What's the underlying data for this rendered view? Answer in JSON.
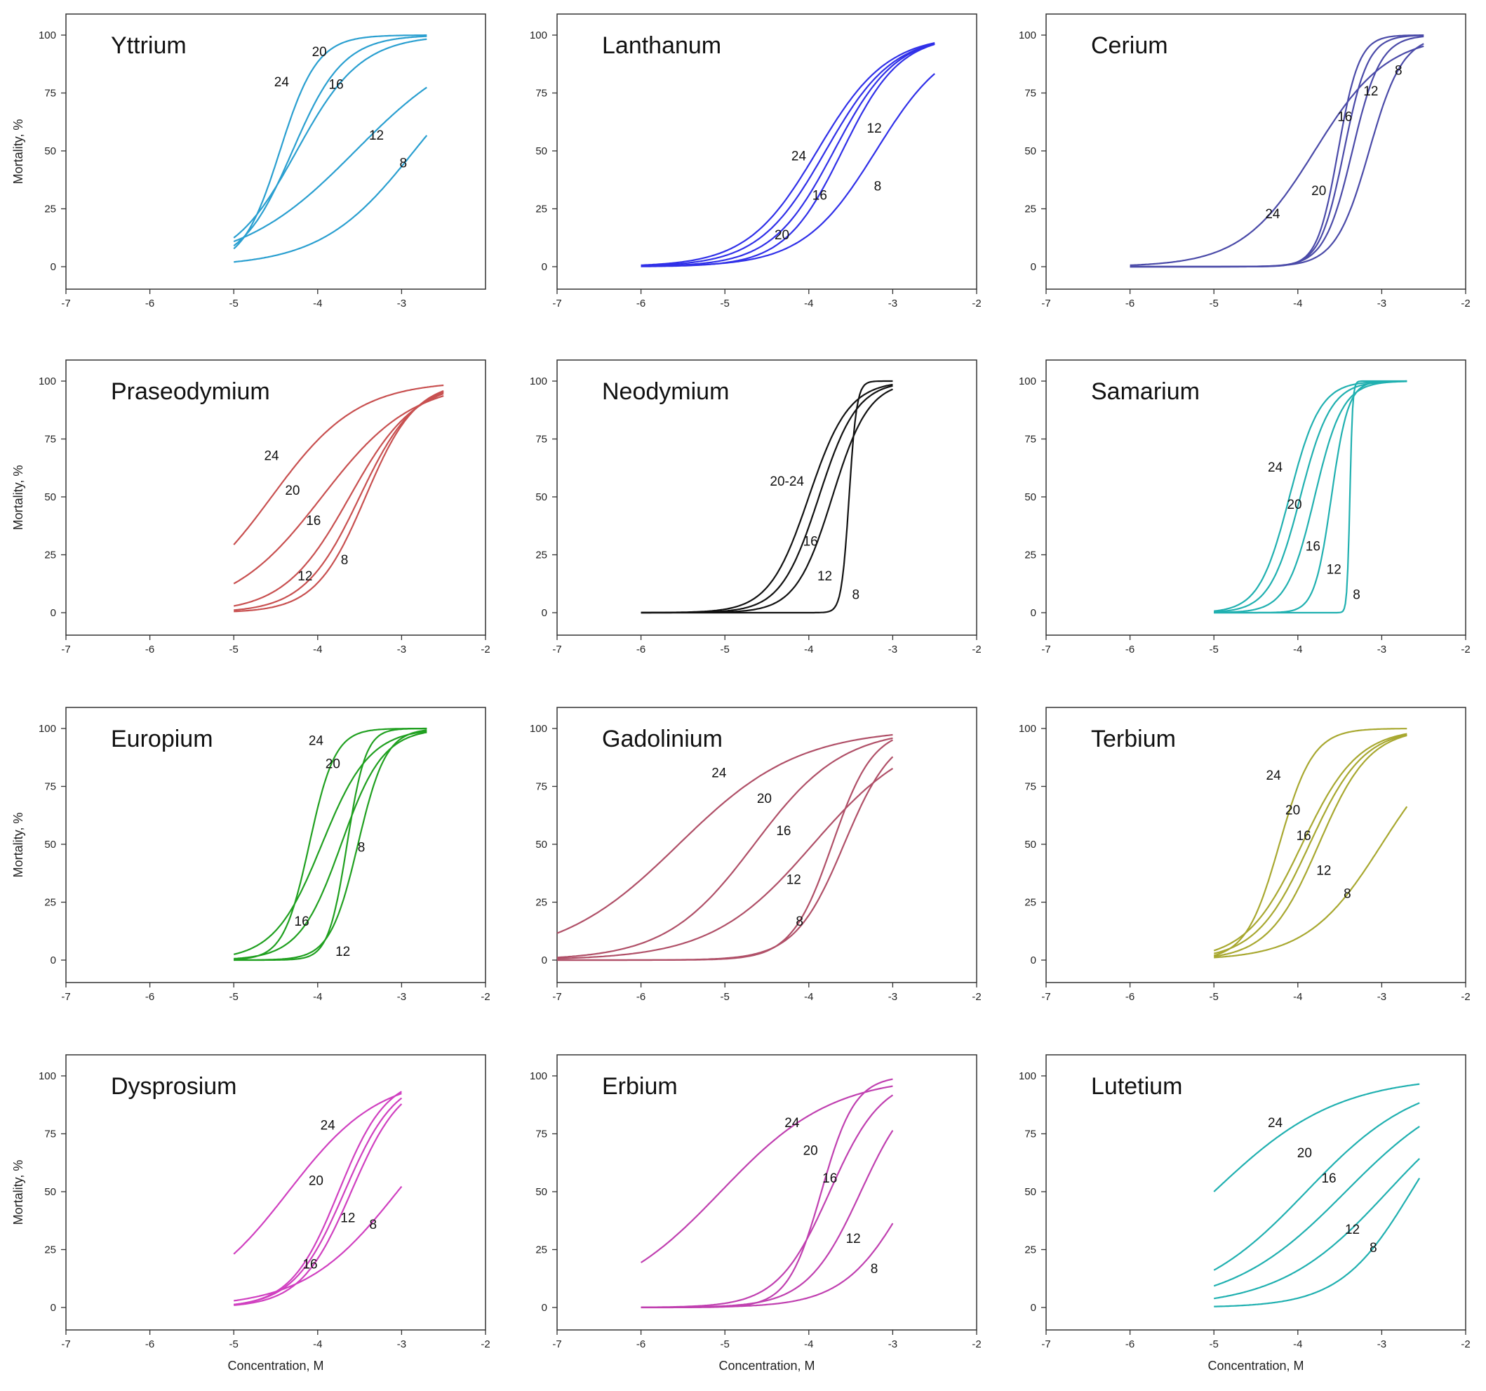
{
  "chart_data": [
    {
      "type": "line",
      "title": "Yttrium",
      "color": "#2a9fd0",
      "xlim": [
        -7,
        -2
      ],
      "ylim": [
        0,
        100
      ],
      "xticks": [
        "-7",
        "-6",
        "-5",
        "-4",
        "-3"
      ],
      "yticks": [
        "0",
        "25",
        "50",
        "75",
        "100"
      ],
      "ylabel": "Mortality, %",
      "xlabel": "",
      "series": [
        {
          "name": "24",
          "x0": -4.45,
          "slope": 4.5,
          "xmin": -5,
          "xmax": -2.7
        },
        {
          "name": "20",
          "x0": -4.3,
          "slope": 3.3,
          "xmin": -5,
          "xmax": -2.7
        },
        {
          "name": "16",
          "x0": -4.25,
          "slope": 2.6,
          "xmin": -5,
          "xmax": -2.7
        },
        {
          "name": "12",
          "x0": -3.55,
          "slope": 1.45,
          "xmin": -5,
          "xmax": -2.7
        },
        {
          "name": "8",
          "x0": -2.85,
          "slope": 1.8,
          "xmin": -5,
          "xmax": -2.7
        }
      ],
      "labels": [
        {
          "text": "24",
          "x": -4.43,
          "y": 80
        },
        {
          "text": "20",
          "x": -3.98,
          "y": 93
        },
        {
          "text": "16",
          "x": -3.78,
          "y": 79
        },
        {
          "text": "12",
          "x": -3.3,
          "y": 57
        },
        {
          "text": "8",
          "x": -2.98,
          "y": 45
        }
      ]
    },
    {
      "type": "line",
      "title": "Lanthanum",
      "color": "#3030e8",
      "xlim": [
        -7,
        -2
      ],
      "ylim": [
        0,
        100
      ],
      "xticks": [
        "-7",
        "-6",
        "-5",
        "-4",
        "-3",
        "-2"
      ],
      "yticks": [
        "0",
        "25",
        "50",
        "75",
        "100"
      ],
      "ylabel": "",
      "xlabel": "",
      "series": [
        {
          "name": "24",
          "x0": -3.9,
          "slope": 2.4,
          "xmin": -6,
          "xmax": -2.5
        },
        {
          "name": "20",
          "x0": -3.8,
          "slope": 2.5,
          "xmin": -6,
          "xmax": -2.5
        },
        {
          "name": "16",
          "x0": -3.7,
          "slope": 2.7,
          "xmin": -6,
          "xmax": -2.5
        },
        {
          "name": "12",
          "x0": -3.6,
          "slope": 2.9,
          "xmin": -6,
          "xmax": -2.5
        },
        {
          "name": "8",
          "x0": -3.2,
          "slope": 2.3,
          "xmin": -6,
          "xmax": -2.5
        }
      ],
      "labels": [
        {
          "text": "24",
          "x": -4.12,
          "y": 48
        },
        {
          "text": "16",
          "x": -3.87,
          "y": 31
        },
        {
          "text": "20",
          "x": -4.32,
          "y": 14
        },
        {
          "text": "12",
          "x": -3.22,
          "y": 60
        },
        {
          "text": "8",
          "x": -3.18,
          "y": 35
        }
      ]
    },
    {
      "type": "line",
      "title": "Cerium",
      "color": "#4a4aa8",
      "xlim": [
        -7,
        -2
      ],
      "ylim": [
        0,
        100
      ],
      "xticks": [
        "-7",
        "-6",
        "-5",
        "-4",
        "-3",
        "-2"
      ],
      "yticks": [
        "0",
        "25",
        "50",
        "75",
        "100"
      ],
      "ylabel": "",
      "xlabel": "",
      "series": [
        {
          "name": "24",
          "x0": -3.8,
          "slope": 2.3,
          "xmin": -6,
          "xmax": -2.5
        },
        {
          "name": "20",
          "x0": -3.52,
          "slope": 8,
          "xmin": -6,
          "xmax": -2.5
        },
        {
          "name": "16",
          "x0": -3.45,
          "slope": 7,
          "xmin": -6,
          "xmax": -2.5
        },
        {
          "name": "12",
          "x0": -3.35,
          "slope": 6,
          "xmin": -6,
          "xmax": -2.5
        },
        {
          "name": "8",
          "x0": -3.15,
          "slope": 5,
          "xmin": -6,
          "xmax": -2.5
        }
      ],
      "labels": [
        {
          "text": "24",
          "x": -4.3,
          "y": 23
        },
        {
          "text": "20",
          "x": -3.75,
          "y": 33
        },
        {
          "text": "16",
          "x": -3.44,
          "y": 65
        },
        {
          "text": "12",
          "x": -3.13,
          "y": 76
        },
        {
          "text": "8",
          "x": -2.8,
          "y": 85
        }
      ]
    },
    {
      "type": "line",
      "title": "Praseodymium",
      "color": "#c85050",
      "xlim": [
        -7,
        -2
      ],
      "ylim": [
        0,
        100
      ],
      "xticks": [
        "-7",
        "-6",
        "-5",
        "-4",
        "-3",
        "-2"
      ],
      "yticks": [
        "0",
        "25",
        "50",
        "75",
        "100"
      ],
      "ylabel": "Mortality, %",
      "xlabel": "",
      "series": [
        {
          "name": "24",
          "x0": -4.55,
          "slope": 1.95,
          "xmin": -5,
          "xmax": -2.5
        },
        {
          "name": "20",
          "x0": -3.95,
          "slope": 1.85,
          "xmin": -5,
          "xmax": -2.5
        },
        {
          "name": "16",
          "x0": -3.62,
          "slope": 2.55,
          "xmin": -5,
          "xmax": -2.5
        },
        {
          "name": "12",
          "x0": -3.5,
          "slope": 3.0,
          "xmin": -5,
          "xmax": -2.5
        },
        {
          "name": "8",
          "x0": -3.43,
          "slope": 3.35,
          "xmin": -5,
          "xmax": -2.5
        }
      ],
      "labels": [
        {
          "text": "24",
          "x": -4.55,
          "y": 68
        },
        {
          "text": "20",
          "x": -4.3,
          "y": 53
        },
        {
          "text": "16",
          "x": -4.05,
          "y": 40
        },
        {
          "text": "12",
          "x": -4.15,
          "y": 16
        },
        {
          "text": "8",
          "x": -3.68,
          "y": 23
        }
      ]
    },
    {
      "type": "line",
      "title": "Neodymium",
      "color": "#111111",
      "xlim": [
        -7,
        -2
      ],
      "ylim": [
        0,
        100
      ],
      "xticks": [
        "-7",
        "-6",
        "-5",
        "-4",
        "-3",
        "-2"
      ],
      "yticks": [
        "0",
        "25",
        "50",
        "75",
        "100"
      ],
      "ylabel": "",
      "xlabel": "",
      "series": [
        {
          "name": "20-24",
          "x0": -4.0,
          "slope": 4.2,
          "xmin": -6,
          "xmax": -3
        },
        {
          "name": "16",
          "x0": -3.88,
          "slope": 4.4,
          "xmin": -6,
          "xmax": -3
        },
        {
          "name": "12",
          "x0": -3.72,
          "slope": 4.6,
          "xmin": -6,
          "xmax": -3
        },
        {
          "name": "8",
          "x0": -3.52,
          "slope": 22,
          "xmin": -6,
          "xmax": -3
        }
      ],
      "labels": [
        {
          "text": "20-24",
          "x": -4.26,
          "y": 57
        },
        {
          "text": "16",
          "x": -3.98,
          "y": 31
        },
        {
          "text": "12",
          "x": -3.81,
          "y": 16
        },
        {
          "text": "8",
          "x": -3.44,
          "y": 8
        }
      ]
    },
    {
      "type": "line",
      "title": "Samarium",
      "color": "#20b0b0",
      "xlim": [
        -7,
        -2
      ],
      "ylim": [
        0,
        100
      ],
      "xticks": [
        "-7",
        "-6",
        "-5",
        "-4",
        "-3",
        "-2"
      ],
      "yticks": [
        "0",
        "25",
        "50",
        "75",
        "100"
      ],
      "ylabel": "",
      "xlabel": "",
      "series": [
        {
          "name": "24",
          "x0": -4.1,
          "slope": 5.5,
          "xmin": -5,
          "xmax": -2.7
        },
        {
          "name": "20",
          "x0": -3.97,
          "slope": 5.5,
          "xmin": -5,
          "xmax": -2.7
        },
        {
          "name": "16",
          "x0": -3.8,
          "slope": 6.0,
          "xmin": -5,
          "xmax": -2.7
        },
        {
          "name": "12",
          "x0": -3.6,
          "slope": 10,
          "xmin": -5,
          "xmax": -2.7
        },
        {
          "name": "8",
          "x0": -3.38,
          "slope": 60,
          "xmin": -5,
          "xmax": -2.7
        }
      ],
      "labels": [
        {
          "text": "24",
          "x": -4.27,
          "y": 63
        },
        {
          "text": "20",
          "x": -4.04,
          "y": 47
        },
        {
          "text": "16",
          "x": -3.82,
          "y": 29
        },
        {
          "text": "12",
          "x": -3.57,
          "y": 19
        },
        {
          "text": "8",
          "x": -3.3,
          "y": 8
        }
      ]
    },
    {
      "type": "line",
      "title": "Europium",
      "color": "#20a020",
      "xlim": [
        -7,
        -2
      ],
      "ylim": [
        0,
        100
      ],
      "xticks": [
        "-7",
        "-6",
        "-5",
        "-4",
        "-3",
        "-2"
      ],
      "yticks": [
        "0",
        "25",
        "50",
        "75",
        "100"
      ],
      "ylabel": "Mortality, %",
      "xlabel": "",
      "series": [
        {
          "name": "24",
          "x0": -4.1,
          "slope": 6.5,
          "xmin": -5,
          "xmax": -2.7
        },
        {
          "name": "20",
          "x0": -3.95,
          "slope": 3.5,
          "xmin": -5,
          "xmax": -2.7
        },
        {
          "name": "16",
          "x0": -3.72,
          "slope": 4.0,
          "xmin": -5,
          "xmax": -2.7
        },
        {
          "name": "12",
          "x0": -3.65,
          "slope": 9,
          "xmin": -5,
          "xmax": -2.7
        },
        {
          "name": "8",
          "x0": -3.52,
          "slope": 6.0,
          "xmin": -5,
          "xmax": -2.7
        }
      ],
      "labels": [
        {
          "text": "24",
          "x": -4.02,
          "y": 95
        },
        {
          "text": "20",
          "x": -3.82,
          "y": 85
        },
        {
          "text": "16",
          "x": -4.19,
          "y": 17
        },
        {
          "text": "12",
          "x": -3.7,
          "y": 4
        },
        {
          "text": "8",
          "x": -3.48,
          "y": 49
        }
      ]
    },
    {
      "type": "line",
      "title": "Gadolinium",
      "color": "#b05068",
      "xlim": [
        -7,
        -2
      ],
      "ylim": [
        0,
        100
      ],
      "xticks": [
        "-7",
        "-6",
        "-5",
        "-4",
        "-3",
        "-2"
      ],
      "yticks": [
        "0",
        "25",
        "50",
        "75",
        "100"
      ],
      "ylabel": "",
      "xlabel": "",
      "series": [
        {
          "name": "24",
          "x0": -5.55,
          "slope": 1.4,
          "xmin": -7,
          "xmax": -3
        },
        {
          "name": "20",
          "x0": -4.65,
          "slope": 1.9,
          "xmin": -7,
          "xmax": -3
        },
        {
          "name": "16",
          "x0": -3.95,
          "slope": 1.65,
          "xmin": -7,
          "xmax": -3
        },
        {
          "name": "12",
          "x0": -3.72,
          "slope": 4.1,
          "xmin": -7,
          "xmax": -3
        },
        {
          "name": "8",
          "x0": -3.58,
          "slope": 3.4,
          "xmin": -7,
          "xmax": -3
        }
      ],
      "labels": [
        {
          "text": "24",
          "x": -5.07,
          "y": 81
        },
        {
          "text": "20",
          "x": -4.53,
          "y": 70
        },
        {
          "text": "16",
          "x": -4.3,
          "y": 56
        },
        {
          "text": "12",
          "x": -4.18,
          "y": 35
        },
        {
          "text": "8",
          "x": -4.11,
          "y": 17
        }
      ]
    },
    {
      "type": "line",
      "title": "Terbium",
      "color": "#a8a830",
      "xlim": [
        -7,
        -2
      ],
      "ylim": [
        0,
        100
      ],
      "xticks": [
        "-7",
        "-6",
        "-5",
        "-4",
        "-3",
        "-2"
      ],
      "yticks": [
        "0",
        "25",
        "50",
        "75",
        "100"
      ],
      "ylabel": "",
      "xlabel": "",
      "series": [
        {
          "name": "24",
          "x0": -4.22,
          "slope": 5.0,
          "xmin": -5,
          "xmax": -2.7
        },
        {
          "name": "20",
          "x0": -3.95,
          "slope": 3.0,
          "xmin": -5,
          "xmax": -2.7
        },
        {
          "name": "16",
          "x0": -3.86,
          "slope": 3.1,
          "xmin": -5,
          "xmax": -2.7
        },
        {
          "name": "12",
          "x0": -3.75,
          "slope": 3.3,
          "xmin": -5,
          "xmax": -2.7
        },
        {
          "name": "8",
          "x0": -3.0,
          "slope": 2.25,
          "xmin": -5,
          "xmax": -2.7
        }
      ],
      "labels": [
        {
          "text": "24",
          "x": -4.29,
          "y": 80
        },
        {
          "text": "20",
          "x": -4.06,
          "y": 65
        },
        {
          "text": "16",
          "x": -3.93,
          "y": 54
        },
        {
          "text": "12",
          "x": -3.69,
          "y": 39
        },
        {
          "text": "8",
          "x": -3.41,
          "y": 29
        }
      ]
    },
    {
      "type": "line",
      "title": "Dysprosium",
      "color": "#d040c0",
      "xlim": [
        -7,
        -2
      ],
      "ylim": [
        0,
        100
      ],
      "xticks": [
        "-7",
        "-6",
        "-5",
        "-4",
        "-3",
        "-2"
      ],
      "yticks": [
        "0",
        "25",
        "50",
        "75",
        "100"
      ],
      "ylabel": "Mortality, %",
      "xlabel": "Concentration, M",
      "series": [
        {
          "name": "24",
          "x0": -4.35,
          "slope": 1.85,
          "xmin": -5,
          "xmax": -3
        },
        {
          "name": "20",
          "x0": -3.75,
          "slope": 3.5,
          "xmin": -5,
          "xmax": -3
        },
        {
          "name": "16",
          "x0": -3.68,
          "slope": 3.3,
          "xmin": -5,
          "xmax": -3
        },
        {
          "name": "12",
          "x0": -3.6,
          "slope": 3.3,
          "xmin": -5,
          "xmax": -3
        },
        {
          "name": "8",
          "x0": -3.05,
          "slope": 1.8,
          "xmin": -5,
          "xmax": -3
        }
      ],
      "labels": [
        {
          "text": "24",
          "x": -3.88,
          "y": 79
        },
        {
          "text": "20",
          "x": -4.02,
          "y": 55
        },
        {
          "text": "12",
          "x": -3.64,
          "y": 39
        },
        {
          "text": "8",
          "x": -3.34,
          "y": 36
        },
        {
          "text": "16",
          "x": -4.09,
          "y": 19
        }
      ]
    },
    {
      "type": "line",
      "title": "Erbium",
      "color": "#c040b0",
      "xlim": [
        -7,
        -2
      ],
      "ylim": [
        0,
        100
      ],
      "xticks": [
        "-7",
        "-6",
        "-5",
        "-4",
        "-3",
        "-2"
      ],
      "yticks": [
        "0",
        "25",
        "50",
        "75",
        "100"
      ],
      "ylabel": "",
      "xlabel": "Concentration, M",
      "series": [
        {
          "name": "24",
          "x0": -5.05,
          "slope": 1.5,
          "xmin": -6,
          "xmax": -3
        },
        {
          "name": "20",
          "x0": -3.85,
          "slope": 5.0,
          "xmin": -6,
          "xmax": -3
        },
        {
          "name": "16",
          "x0": -3.75,
          "slope": 3.2,
          "xmin": -6,
          "xmax": -3
        },
        {
          "name": "12",
          "x0": -3.38,
          "slope": 3.1,
          "xmin": -6,
          "xmax": -3
        },
        {
          "name": "8",
          "x0": -2.78,
          "slope": 2.55,
          "xmin": -6,
          "xmax": -3
        }
      ],
      "labels": [
        {
          "text": "24",
          "x": -4.2,
          "y": 80
        },
        {
          "text": "20",
          "x": -3.98,
          "y": 68
        },
        {
          "text": "16",
          "x": -3.75,
          "y": 56
        },
        {
          "text": "12",
          "x": -3.47,
          "y": 30
        },
        {
          "text": "8",
          "x": -3.22,
          "y": 17
        }
      ]
    },
    {
      "type": "line",
      "title": "Lutetium",
      "color": "#20b0b0",
      "xlim": [
        -7,
        -2
      ],
      "ylim": [
        0,
        100
      ],
      "xticks": [
        "-7",
        "-6",
        "-5",
        "-4",
        "-3",
        "-2"
      ],
      "yticks": [
        "0",
        "25",
        "50",
        "75",
        "100"
      ],
      "ylabel": "",
      "xlabel": "Concentration, M",
      "series": [
        {
          "name": "24",
          "x0": -5.0,
          "slope": 1.35,
          "xmin": -5,
          "xmax": -2.55
        },
        {
          "name": "20",
          "x0": -3.9,
          "slope": 1.5,
          "xmin": -5,
          "xmax": -2.55
        },
        {
          "name": "16",
          "x0": -3.43,
          "slope": 1.45,
          "xmin": -5,
          "xmax": -2.55
        },
        {
          "name": "12",
          "x0": -2.93,
          "slope": 1.55,
          "xmin": -5,
          "xmax": -2.55
        },
        {
          "name": "8",
          "x0": -2.65,
          "slope": 2.35,
          "xmin": -5,
          "xmax": -2.55
        }
      ],
      "labels": [
        {
          "text": "24",
          "x": -4.27,
          "y": 80
        },
        {
          "text": "20",
          "x": -3.92,
          "y": 67
        },
        {
          "text": "16",
          "x": -3.63,
          "y": 56
        },
        {
          "text": "12",
          "x": -3.35,
          "y": 34
        },
        {
          "text": "8",
          "x": -3.1,
          "y": 26
        }
      ]
    }
  ]
}
